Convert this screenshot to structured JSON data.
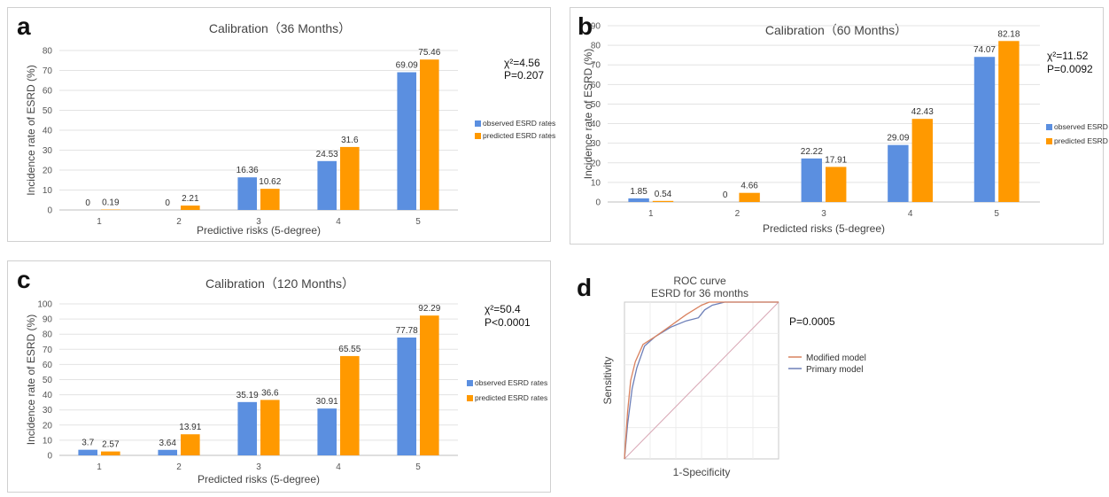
{
  "chart_data": [
    {
      "panel_letter": "a",
      "type": "bar",
      "title": "Calibration（36 Months）",
      "xlabel": "Predictive risks (5-degree)",
      "ylabel": "Incidence rate of ESRD (%)",
      "categories": [
        "1",
        "2",
        "3",
        "4",
        "5"
      ],
      "ylim": [
        0,
        80
      ],
      "yticks": [
        0,
        10,
        20,
        30,
        40,
        50,
        60,
        70,
        80
      ],
      "grid": true,
      "legend_position": "right",
      "series": [
        {
          "name": "observed ESRD rates",
          "color": "#5b8fe0",
          "values": [
            0,
            0,
            16.36,
            24.53,
            69.09
          ],
          "labels": [
            "0",
            "0",
            "16.36",
            "24.53",
            "69.09"
          ]
        },
        {
          "name": "predicted ESRD rates",
          "color": "#ff9900",
          "values": [
            0.19,
            2.21,
            10.62,
            31.6,
            75.46
          ],
          "labels": [
            "0.19",
            "2.21",
            "10.62",
            "31.6",
            "75.46"
          ]
        }
      ],
      "stats": {
        "chi2": "χ²=4.56",
        "p": "P=0.207"
      }
    },
    {
      "panel_letter": "b",
      "type": "bar",
      "title": "Calibration（60 Months）",
      "xlabel": "Predicted risks (5-degree)",
      "ylabel": "Incidence rate of ESRD (%)",
      "categories": [
        "1",
        "2",
        "3",
        "4",
        "5"
      ],
      "ylim": [
        0,
        90
      ],
      "yticks": [
        0,
        10,
        20,
        30,
        40,
        50,
        60,
        70,
        80,
        90
      ],
      "grid": true,
      "legend_position": "right",
      "series": [
        {
          "name": "observed ESRD rates",
          "color": "#5b8fe0",
          "values": [
            1.85,
            0,
            22.22,
            29.09,
            74.07
          ],
          "labels": [
            "1.85",
            "0",
            "22.22",
            "29.09",
            "74.07"
          ]
        },
        {
          "name": "predicted ESRD rates",
          "color": "#ff9900",
          "values": [
            0.54,
            4.66,
            17.91,
            42.43,
            82.18
          ],
          "labels": [
            "0.54",
            "4.66",
            "17.91",
            "42.43",
            "82.18"
          ]
        }
      ],
      "stats": {
        "chi2": "χ²=11.52",
        "p": "P=0.0092"
      }
    },
    {
      "panel_letter": "c",
      "type": "bar",
      "title": "Calibration（120 Months）",
      "xlabel": "Predicted risks (5-degree)",
      "ylabel": "Incidence rate of ESRD (%)",
      "categories": [
        "1",
        "2",
        "3",
        "4",
        "5"
      ],
      "ylim": [
        0,
        100
      ],
      "yticks": [
        0,
        10,
        20,
        30,
        40,
        50,
        60,
        70,
        80,
        90,
        100
      ],
      "grid": true,
      "legend_position": "right",
      "series": [
        {
          "name": "observed ESRD rates",
          "color": "#5b8fe0",
          "values": [
            3.7,
            3.64,
            35.19,
            30.91,
            77.78
          ],
          "labels": [
            "3.7",
            "3.64",
            "35.19",
            "30.91",
            "77.78"
          ]
        },
        {
          "name": "predicted ESRD rates",
          "color": "#ff9900",
          "values": [
            2.57,
            13.91,
            36.6,
            65.55,
            92.29
          ],
          "labels": [
            "2.57",
            "13.91",
            "36.6",
            "65.55",
            "92.29"
          ]
        }
      ],
      "stats": {
        "chi2": "χ²=50.4",
        "p": "P<0.0001"
      }
    },
    {
      "panel_letter": "d",
      "type": "line",
      "title": "ROC curve",
      "subtitle": "ESRD  for 36 months",
      "xlabel": "1-Specificity",
      "ylabel": "Sensitivity",
      "xlim": [
        0,
        1
      ],
      "ylim": [
        0,
        1
      ],
      "grid": true,
      "legend_position": "right",
      "stat": "P=0.0005",
      "series": [
        {
          "name": "Modified model",
          "color": "#d9825f",
          "x": [
            0,
            0.02,
            0.04,
            0.07,
            0.12,
            0.2,
            0.3,
            0.4,
            0.5,
            0.55,
            0.6,
            0.7,
            0.8,
            0.9,
            1.0
          ],
          "y": [
            0,
            0.3,
            0.5,
            0.62,
            0.73,
            0.78,
            0.85,
            0.92,
            0.98,
            1.0,
            1.0,
            1.0,
            1.0,
            1.0,
            1.0
          ]
        },
        {
          "name": "Primary model",
          "color": "#6d7fb8",
          "x": [
            0,
            0.02,
            0.05,
            0.08,
            0.13,
            0.2,
            0.3,
            0.4,
            0.48,
            0.52,
            0.57,
            0.65,
            0.75,
            0.9,
            1.0
          ],
          "y": [
            0,
            0.22,
            0.45,
            0.58,
            0.72,
            0.78,
            0.84,
            0.88,
            0.9,
            0.95,
            0.98,
            1.0,
            1.0,
            1.0,
            1.0
          ]
        },
        {
          "name": "",
          "color": "#d8a6b4",
          "x": [
            0,
            1
          ],
          "y": [
            0,
            1
          ]
        }
      ]
    }
  ]
}
